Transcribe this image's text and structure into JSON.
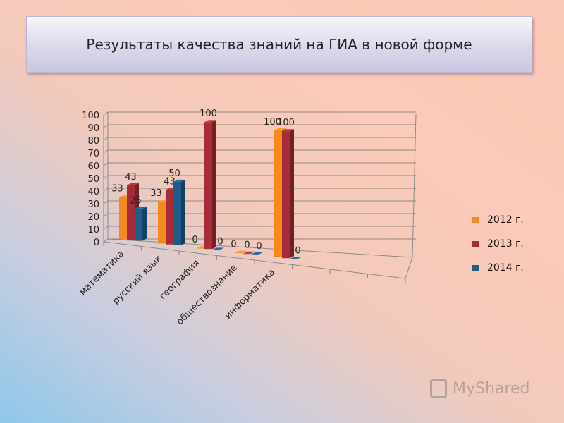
{
  "title": "Результаты качества знаний на  ГИА в новой форме",
  "watermark": "MyShared",
  "chart_data": {
    "type": "bar",
    "categories": [
      "математика",
      "русский язык",
      "география",
      "обществознание",
      "информатика"
    ],
    "series": [
      {
        "name": "2012 г.",
        "values": [
          33,
          33,
          0,
          0,
          100
        ],
        "color": "#f28a1e"
      },
      {
        "name": "2013 г.",
        "values": [
          43,
          43,
          100,
          0,
          100
        ],
        "color": "#a62c38"
      },
      {
        "name": "2014 г.",
        "values": [
          25,
          50,
          0,
          0,
          0
        ],
        "color": "#1f5c8a"
      }
    ],
    "data_labels": [
      [
        "33",
        "43",
        "25"
      ],
      [
        "33",
        "43",
        "50"
      ],
      [
        "0",
        "100",
        "0"
      ],
      [
        "0",
        "0",
        "0"
      ],
      [
        "100",
        "100",
        "0"
      ]
    ],
    "y_ticks": [
      "0",
      "10",
      "20",
      "30",
      "40",
      "50",
      "60",
      "70",
      "80",
      "90",
      "100"
    ],
    "ylim": [
      0,
      100
    ],
    "grid": true,
    "legend_position": "right",
    "style": "3d-clustered"
  }
}
